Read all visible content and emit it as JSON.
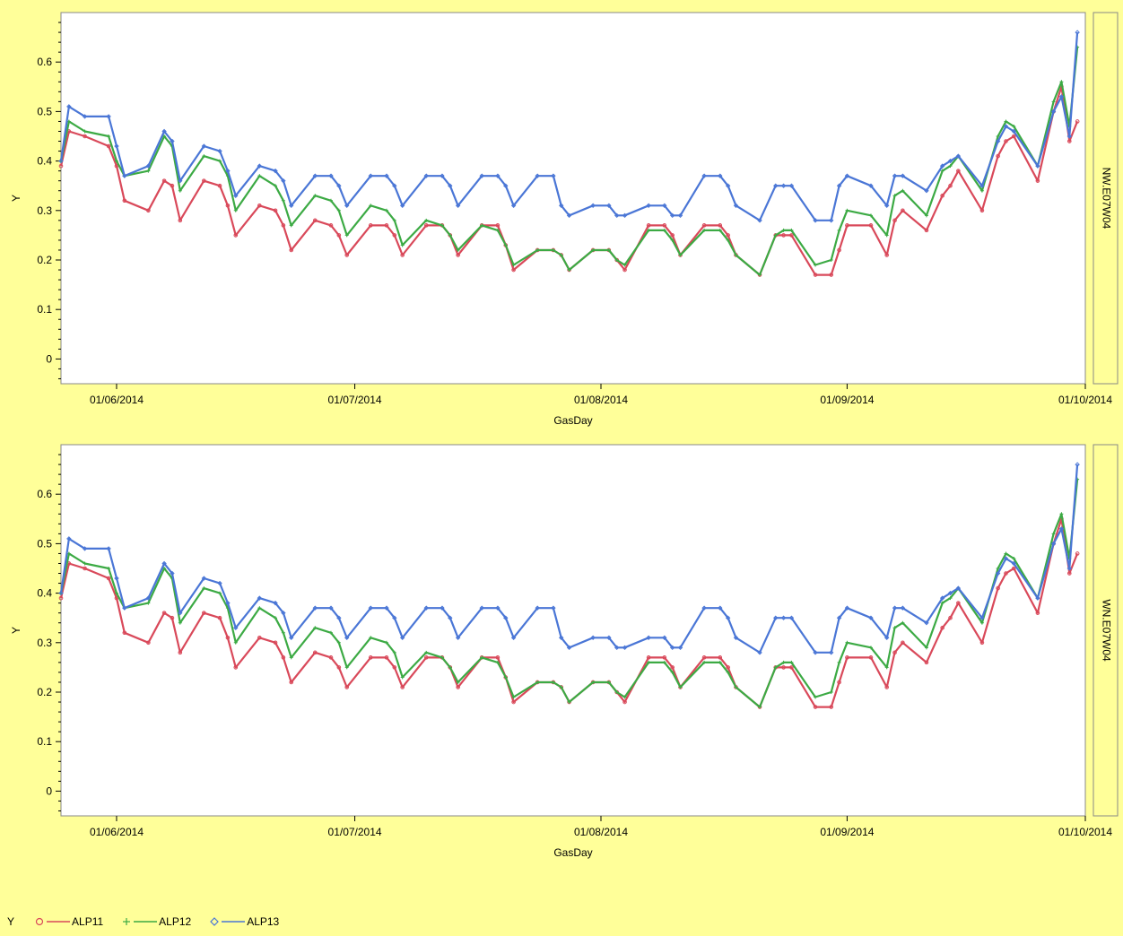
{
  "legend": {
    "title": "Y",
    "entries": [
      {
        "label": "ALP11",
        "color": "#D9495A",
        "marker": "circle"
      },
      {
        "label": "ALP12",
        "color": "#3CAA44",
        "marker": "plus"
      },
      {
        "label": "ALP13",
        "color": "#4A76D6",
        "marker": "diamond"
      }
    ]
  },
  "chart_data": [
    {
      "type": "line",
      "panel_label": "NW.E07W04",
      "xlabel": "GasDay",
      "ylabel": "Y",
      "x_ticks": [
        "01/06/2014",
        "01/07/2014",
        "01/08/2014",
        "01/09/2014",
        "01/10/2014"
      ],
      "y_ticks": [
        0,
        0.1,
        0.2,
        0.3,
        0.4,
        0.5,
        0.6
      ],
      "xlim": [
        "2014-05-25",
        "2014-10-01"
      ],
      "ylim": [
        -0.05,
        0.7
      ],
      "grid": false,
      "x_dates": [
        "2014-05-25",
        "2014-05-26",
        "2014-05-28",
        "2014-05-31",
        "2014-06-01",
        "2014-06-02",
        "2014-06-05",
        "2014-06-07",
        "2014-06-08",
        "2014-06-09",
        "2014-06-12",
        "2014-06-14",
        "2014-06-15",
        "2014-06-16",
        "2014-06-19",
        "2014-06-21",
        "2014-06-22",
        "2014-06-23",
        "2014-06-26",
        "2014-06-28",
        "2014-06-29",
        "2014-06-30",
        "2014-07-03",
        "2014-07-05",
        "2014-07-06",
        "2014-07-07",
        "2014-07-10",
        "2014-07-12",
        "2014-07-13",
        "2014-07-14",
        "2014-07-17",
        "2014-07-19",
        "2014-07-20",
        "2014-07-21",
        "2014-07-24",
        "2014-07-26",
        "2014-07-27",
        "2014-07-28",
        "2014-07-31",
        "2014-08-02",
        "2014-08-03",
        "2014-08-04",
        "2014-08-07",
        "2014-08-09",
        "2014-08-10",
        "2014-08-11",
        "2014-08-14",
        "2014-08-16",
        "2014-08-17",
        "2014-08-18",
        "2014-08-21",
        "2014-08-23",
        "2014-08-24",
        "2014-08-25",
        "2014-08-28",
        "2014-08-30",
        "2014-08-31",
        "2014-09-01",
        "2014-09-04",
        "2014-09-06",
        "2014-09-07",
        "2014-09-08",
        "2014-09-11",
        "2014-09-13",
        "2014-09-14",
        "2014-09-15",
        "2014-09-18",
        "2014-09-20",
        "2014-09-21",
        "2014-09-22",
        "2014-09-25",
        "2014-09-27",
        "2014-09-28",
        "2014-09-29",
        "2014-09-30"
      ],
      "series": [
        {
          "name": "ALP11",
          "values": [
            0.39,
            0.46,
            0.45,
            0.43,
            0.39,
            0.32,
            0.3,
            0.36,
            0.35,
            0.28,
            0.36,
            0.35,
            0.31,
            0.25,
            0.31,
            0.3,
            0.27,
            0.22,
            0.28,
            0.27,
            0.25,
            0.21,
            0.27,
            0.27,
            0.25,
            0.21,
            0.27,
            0.27,
            0.25,
            0.21,
            0.27,
            0.27,
            0.23,
            0.18,
            0.22,
            0.22,
            0.21,
            0.18,
            0.22,
            0.22,
            0.2,
            0.18,
            0.27,
            0.27,
            0.25,
            0.21,
            0.27,
            0.27,
            0.25,
            0.21,
            0.17,
            0.25,
            0.25,
            0.25,
            0.17,
            0.17,
            0.22,
            0.27,
            0.27,
            0.21,
            0.28,
            0.3,
            0.26,
            0.33,
            0.35,
            0.38,
            0.3,
            0.41,
            0.44,
            0.45,
            0.36,
            0.5,
            0.55,
            0.44,
            0.48
          ]
        },
        {
          "name": "ALP12",
          "values": [
            0.4,
            0.48,
            0.46,
            0.45,
            0.4,
            0.37,
            0.38,
            0.45,
            0.43,
            0.34,
            0.41,
            0.4,
            0.37,
            0.3,
            0.37,
            0.35,
            0.32,
            0.27,
            0.33,
            0.32,
            0.3,
            0.25,
            0.31,
            0.3,
            0.28,
            0.23,
            0.28,
            0.27,
            0.25,
            0.22,
            0.27,
            0.26,
            0.23,
            0.19,
            0.22,
            0.22,
            0.21,
            0.18,
            0.22,
            0.22,
            0.2,
            0.19,
            0.26,
            0.26,
            0.24,
            0.21,
            0.26,
            0.26,
            0.24,
            0.21,
            0.17,
            0.25,
            0.26,
            0.26,
            0.19,
            0.2,
            0.26,
            0.3,
            0.29,
            0.25,
            0.33,
            0.34,
            0.29,
            0.38,
            0.39,
            0.41,
            0.34,
            0.45,
            0.48,
            0.47,
            0.39,
            0.52,
            0.56,
            0.47,
            0.63
          ]
        },
        {
          "name": "ALP13",
          "values": [
            0.4,
            0.51,
            0.49,
            0.49,
            0.43,
            0.37,
            0.39,
            0.46,
            0.44,
            0.36,
            0.43,
            0.42,
            0.38,
            0.33,
            0.39,
            0.38,
            0.36,
            0.31,
            0.37,
            0.37,
            0.35,
            0.31,
            0.37,
            0.37,
            0.35,
            0.31,
            0.37,
            0.37,
            0.35,
            0.31,
            0.37,
            0.37,
            0.35,
            0.31,
            0.37,
            0.37,
            0.31,
            0.29,
            0.31,
            0.31,
            0.29,
            0.29,
            0.31,
            0.31,
            0.29,
            0.29,
            0.37,
            0.37,
            0.35,
            0.31,
            0.28,
            0.35,
            0.35,
            0.35,
            0.28,
            0.28,
            0.35,
            0.37,
            0.35,
            0.31,
            0.37,
            0.37,
            0.34,
            0.39,
            0.4,
            0.41,
            0.35,
            0.44,
            0.47,
            0.46,
            0.39,
            0.5,
            0.53,
            0.45,
            0.66
          ]
        }
      ]
    },
    {
      "type": "line",
      "panel_label": "WN.E07W04",
      "xlabel": "GasDay",
      "ylabel": "Y",
      "x_ticks": [
        "01/06/2014",
        "01/07/2014",
        "01/08/2014",
        "01/09/2014",
        "01/10/2014"
      ],
      "y_ticks": [
        0,
        0.1,
        0.2,
        0.3,
        0.4,
        0.5,
        0.6
      ],
      "xlim": [
        "2014-05-25",
        "2014-10-01"
      ],
      "ylim": [
        -0.05,
        0.7
      ],
      "grid": false,
      "x_dates": [
        "2014-05-25",
        "2014-05-26",
        "2014-05-28",
        "2014-05-31",
        "2014-06-01",
        "2014-06-02",
        "2014-06-05",
        "2014-06-07",
        "2014-06-08",
        "2014-06-09",
        "2014-06-12",
        "2014-06-14",
        "2014-06-15",
        "2014-06-16",
        "2014-06-19",
        "2014-06-21",
        "2014-06-22",
        "2014-06-23",
        "2014-06-26",
        "2014-06-28",
        "2014-06-29",
        "2014-06-30",
        "2014-07-03",
        "2014-07-05",
        "2014-07-06",
        "2014-07-07",
        "2014-07-10",
        "2014-07-12",
        "2014-07-13",
        "2014-07-14",
        "2014-07-17",
        "2014-07-19",
        "2014-07-20",
        "2014-07-21",
        "2014-07-24",
        "2014-07-26",
        "2014-07-27",
        "2014-07-28",
        "2014-07-31",
        "2014-08-02",
        "2014-08-03",
        "2014-08-04",
        "2014-08-07",
        "2014-08-09",
        "2014-08-10",
        "2014-08-11",
        "2014-08-14",
        "2014-08-16",
        "2014-08-17",
        "2014-08-18",
        "2014-08-21",
        "2014-08-23",
        "2014-08-24",
        "2014-08-25",
        "2014-08-28",
        "2014-08-30",
        "2014-08-31",
        "2014-09-01",
        "2014-09-04",
        "2014-09-06",
        "2014-09-07",
        "2014-09-08",
        "2014-09-11",
        "2014-09-13",
        "2014-09-14",
        "2014-09-15",
        "2014-09-18",
        "2014-09-20",
        "2014-09-21",
        "2014-09-22",
        "2014-09-25",
        "2014-09-27",
        "2014-09-28",
        "2014-09-29",
        "2014-09-30"
      ],
      "series": [
        {
          "name": "ALP11",
          "values": [
            0.39,
            0.46,
            0.45,
            0.43,
            0.39,
            0.32,
            0.3,
            0.36,
            0.35,
            0.28,
            0.36,
            0.35,
            0.31,
            0.25,
            0.31,
            0.3,
            0.27,
            0.22,
            0.28,
            0.27,
            0.25,
            0.21,
            0.27,
            0.27,
            0.25,
            0.21,
            0.27,
            0.27,
            0.25,
            0.21,
            0.27,
            0.27,
            0.23,
            0.18,
            0.22,
            0.22,
            0.21,
            0.18,
            0.22,
            0.22,
            0.2,
            0.18,
            0.27,
            0.27,
            0.25,
            0.21,
            0.27,
            0.27,
            0.25,
            0.21,
            0.17,
            0.25,
            0.25,
            0.25,
            0.17,
            0.17,
            0.22,
            0.27,
            0.27,
            0.21,
            0.28,
            0.3,
            0.26,
            0.33,
            0.35,
            0.38,
            0.3,
            0.41,
            0.44,
            0.45,
            0.36,
            0.5,
            0.55,
            0.44,
            0.48
          ]
        },
        {
          "name": "ALP12",
          "values": [
            0.4,
            0.48,
            0.46,
            0.45,
            0.4,
            0.37,
            0.38,
            0.45,
            0.43,
            0.34,
            0.41,
            0.4,
            0.37,
            0.3,
            0.37,
            0.35,
            0.32,
            0.27,
            0.33,
            0.32,
            0.3,
            0.25,
            0.31,
            0.3,
            0.28,
            0.23,
            0.28,
            0.27,
            0.25,
            0.22,
            0.27,
            0.26,
            0.23,
            0.19,
            0.22,
            0.22,
            0.21,
            0.18,
            0.22,
            0.22,
            0.2,
            0.19,
            0.26,
            0.26,
            0.24,
            0.21,
            0.26,
            0.26,
            0.24,
            0.21,
            0.17,
            0.25,
            0.26,
            0.26,
            0.19,
            0.2,
            0.26,
            0.3,
            0.29,
            0.25,
            0.33,
            0.34,
            0.29,
            0.38,
            0.39,
            0.41,
            0.34,
            0.45,
            0.48,
            0.47,
            0.39,
            0.52,
            0.56,
            0.47,
            0.63
          ]
        },
        {
          "name": "ALP13",
          "values": [
            0.4,
            0.51,
            0.49,
            0.49,
            0.43,
            0.37,
            0.39,
            0.46,
            0.44,
            0.36,
            0.43,
            0.42,
            0.38,
            0.33,
            0.39,
            0.38,
            0.36,
            0.31,
            0.37,
            0.37,
            0.35,
            0.31,
            0.37,
            0.37,
            0.35,
            0.31,
            0.37,
            0.37,
            0.35,
            0.31,
            0.37,
            0.37,
            0.35,
            0.31,
            0.37,
            0.37,
            0.31,
            0.29,
            0.31,
            0.31,
            0.29,
            0.29,
            0.31,
            0.31,
            0.29,
            0.29,
            0.37,
            0.37,
            0.35,
            0.31,
            0.28,
            0.35,
            0.35,
            0.35,
            0.28,
            0.28,
            0.35,
            0.37,
            0.35,
            0.31,
            0.37,
            0.37,
            0.34,
            0.39,
            0.4,
            0.41,
            0.35,
            0.44,
            0.47,
            0.46,
            0.39,
            0.5,
            0.53,
            0.45,
            0.66
          ]
        }
      ]
    }
  ]
}
